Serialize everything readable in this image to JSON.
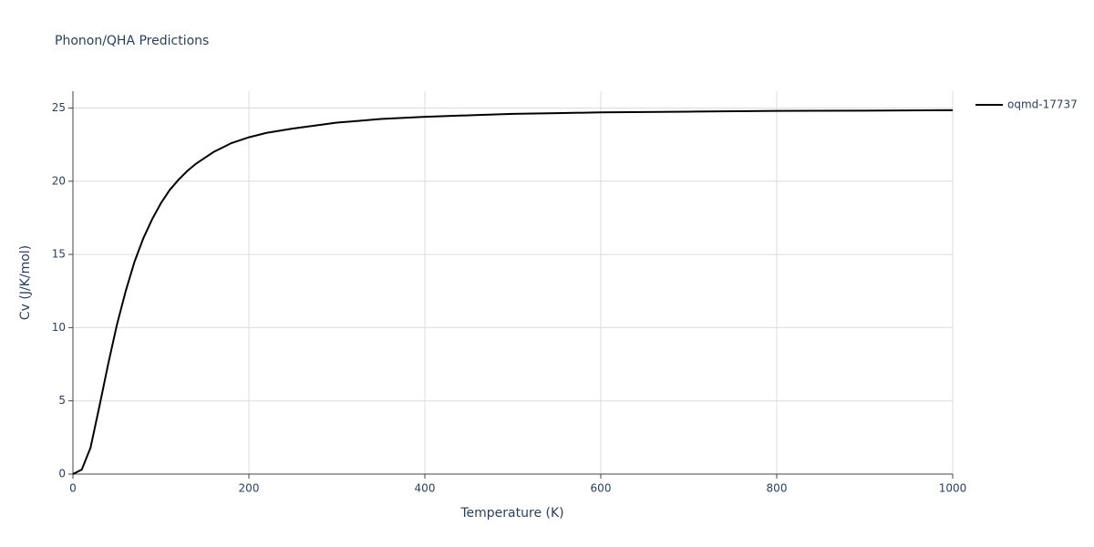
{
  "chart_data": {
    "type": "line",
    "title": "Phonon/QHA Predictions",
    "x_label": "Temperature (K)",
    "y_label": "Cv (J/K/mol)",
    "x": [
      0,
      10,
      20,
      30,
      40,
      50,
      60,
      70,
      80,
      90,
      100,
      110,
      120,
      130,
      140,
      150,
      160,
      170,
      180,
      190,
      200,
      220,
      250,
      300,
      350,
      400,
      450,
      500,
      550,
      600,
      700,
      800,
      900,
      1000
    ],
    "series": [
      {
        "name": "oqmd-17737",
        "color": "#000000",
        "values": [
          0,
          0.3,
          1.8,
          4.6,
          7.5,
          10.2,
          12.5,
          14.5,
          16.1,
          17.4,
          18.5,
          19.4,
          20.1,
          20.7,
          21.2,
          21.6,
          22.0,
          22.3,
          22.6,
          22.8,
          23.0,
          23.3,
          23.6,
          24.0,
          24.25,
          24.4,
          24.5,
          24.6,
          24.65,
          24.7,
          24.75,
          24.8,
          24.82,
          24.85
        ]
      }
    ],
    "xlim": [
      0,
      1000
    ],
    "xticks": [
      0,
      200,
      400,
      600,
      800,
      1000
    ],
    "ylim": [
      0,
      26.15
    ],
    "yticks": [
      0,
      5,
      10,
      15,
      20,
      25
    ],
    "grid": true,
    "legend": "right"
  }
}
